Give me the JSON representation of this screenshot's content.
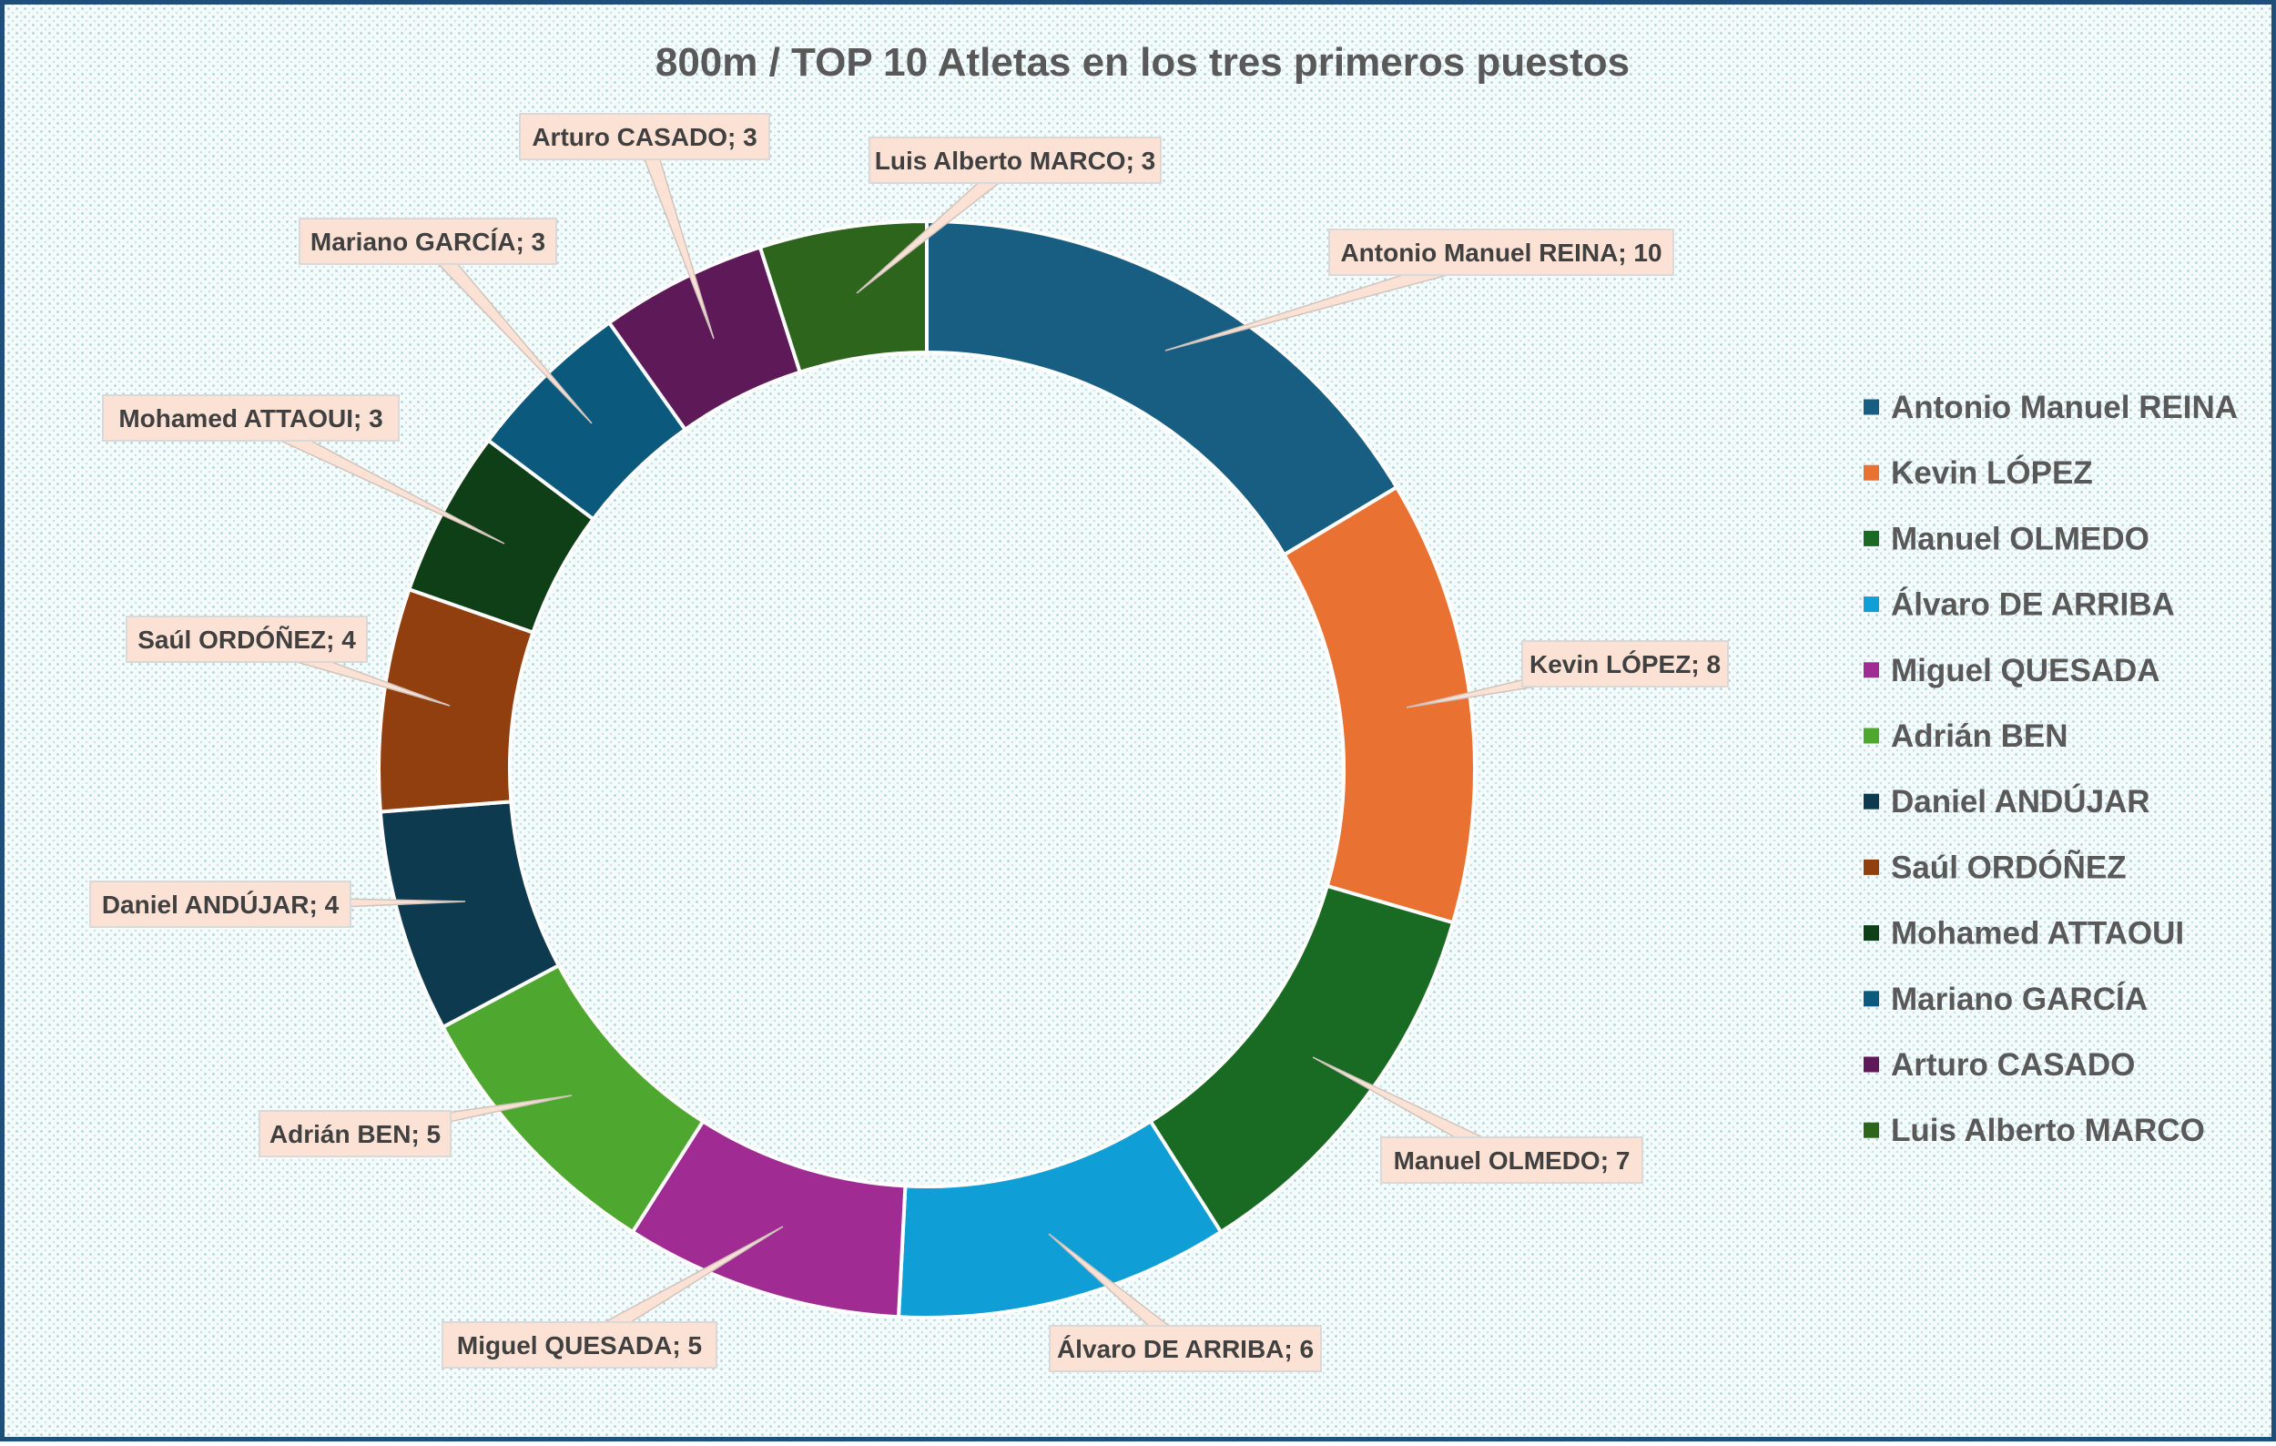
{
  "chart_data": {
    "type": "pie",
    "variant": "doughnut",
    "title": "800m / TOP 10 Atletas en los tres primeros puestos",
    "legend_position": "right",
    "series": [
      {
        "name": "Antonio Manuel REINA",
        "value": 10,
        "color": "#175e82",
        "label": "Antonio Manuel REINA; 10"
      },
      {
        "name": "Kevin LÓPEZ",
        "value": 8,
        "color": "#e97132",
        "label": "Kevin LÓPEZ; 8"
      },
      {
        "name": "Manuel OLMEDO",
        "value": 7,
        "color": "#196b24",
        "label": "Manuel OLMEDO; 7"
      },
      {
        "name": "Álvaro DE ARRIBA",
        "value": 6,
        "color": "#0f9ed5",
        "label": "Álvaro DE ARRIBA; 6"
      },
      {
        "name": "Miguel QUESADA",
        "value": 5,
        "color": "#a02b93",
        "label": "Miguel QUESADA; 5"
      },
      {
        "name": "Adrián BEN",
        "value": 5,
        "color": "#4ea72e",
        "label": "Adrián BEN; 5"
      },
      {
        "name": "Daniel ANDÚJAR",
        "value": 4,
        "color": "#0e3a50",
        "label": "Daniel ANDÚJAR; 4"
      },
      {
        "name": "Saúl ORDÓÑEZ",
        "value": 4,
        "color": "#923f10",
        "label": "Saúl ORDÓÑEZ; 4"
      },
      {
        "name": "Mohamed ATTAOUI",
        "value": 3,
        "color": "#0f3f16",
        "label": "Mohamed ATTAOUI; 3"
      },
      {
        "name": "Mariano GARCÍA",
        "value": 3,
        "color": "#0b5a7e",
        "label": "Mariano GARCÍA; 3"
      },
      {
        "name": "Arturo CASADO",
        "value": 3,
        "color": "#5e1a58",
        "label": "Arturo CASADO; 3"
      },
      {
        "name": "Luis Alberto MARCO",
        "value": 3,
        "color": "#2e651c",
        "label": "Luis Alberto MARCO; 3"
      }
    ]
  }
}
